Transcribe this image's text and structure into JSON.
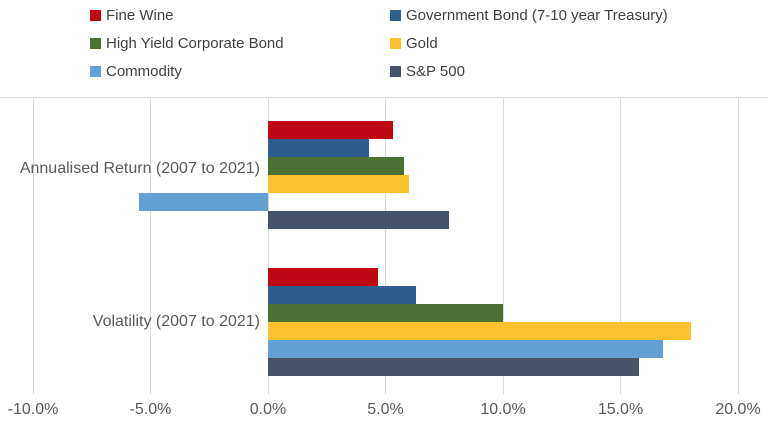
{
  "legend": {
    "items": [
      {
        "label": "Fine Wine",
        "color": "#C00714"
      },
      {
        "label": "Government Bond (7-10 year Treasury)",
        "color": "#2D5E8E"
      },
      {
        "label": "High Yield Corporate Bond",
        "color": "#4C7031"
      },
      {
        "label": "Gold",
        "color": "#FCC12F"
      },
      {
        "label": "Commodity",
        "color": "#63A0D4"
      },
      {
        "label": "S&P 500",
        "color": "#46536A"
      }
    ]
  },
  "chart_data": {
    "type": "bar",
    "orientation": "horizontal",
    "title": "",
    "categories": [
      "Annualised Return (2007 to 2021)",
      "Volatility (2007 to 2021)"
    ],
    "series": [
      {
        "name": "Fine Wine",
        "color": "#C00714",
        "values": [
          5.3,
          4.7
        ]
      },
      {
        "name": "Government Bond (7-10 year Treasury)",
        "color": "#2D5E8E",
        "values": [
          4.3,
          6.3
        ]
      },
      {
        "name": "High Yield Corporate Bond",
        "color": "#4C7031",
        "values": [
          5.8,
          10.0
        ]
      },
      {
        "name": "Gold",
        "color": "#FCC12F",
        "values": [
          6.0,
          18.0
        ]
      },
      {
        "name": "Commodity",
        "color": "#63A0D4",
        "values": [
          -5.5,
          16.8
        ]
      },
      {
        "name": "S&P 500",
        "color": "#46536A",
        "values": [
          7.7,
          15.8
        ]
      }
    ],
    "x_axis": {
      "min": -10,
      "max": 20,
      "step": 5,
      "unit": "%",
      "tick_labels": [
        "-10.0%",
        "-5.0%",
        "0.0%",
        "5.0%",
        "10.0%",
        "15.0%",
        "20.0%"
      ]
    },
    "grid": true,
    "legend_position": "top"
  },
  "colors": {
    "grid": "#D9D9D9",
    "axis_text": "#595959",
    "legend_text": "#3F3F3F",
    "background": "#FFFFFF"
  }
}
